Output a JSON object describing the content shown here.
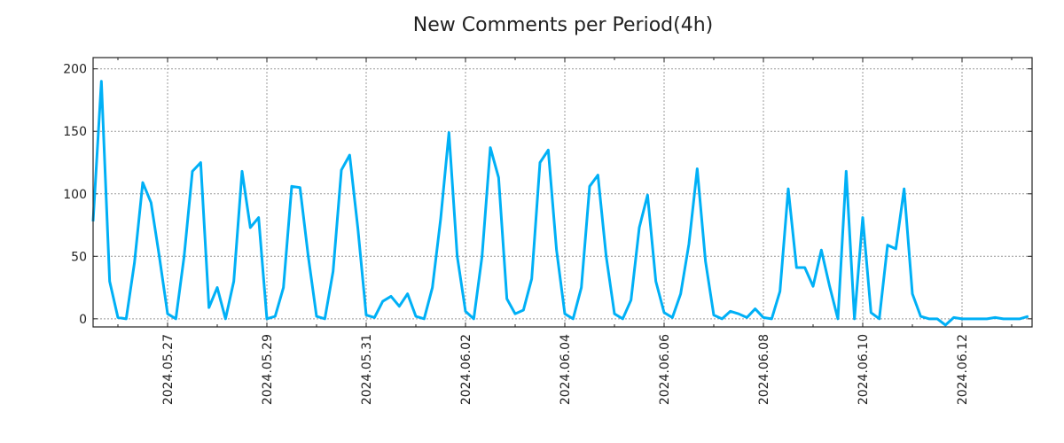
{
  "chart_data": {
    "type": "line",
    "title": "New Comments per Period(4h)",
    "xlabel": "",
    "ylabel": "",
    "x_start": "2024-05-25T12:00",
    "interval_hours": 4,
    "ylim": [
      -6.5,
      209
    ],
    "yticks": [
      0,
      50,
      100,
      150,
      200
    ],
    "xticks": [
      "2024.05.27",
      "2024.05.29",
      "2024.05.31",
      "2024.06.02",
      "2024.06.04",
      "2024.06.06",
      "2024.06.08",
      "2024.06.10",
      "2024.06.12"
    ],
    "grid": true,
    "line_color": "#00b0f6",
    "series": [
      {
        "name": "New Comments",
        "values": [
          78,
          190,
          30,
          1,
          0,
          45,
          109,
          93,
          50,
          4,
          0,
          50,
          118,
          125,
          9,
          25,
          0,
          30,
          118,
          73,
          81,
          0,
          2,
          25,
          106,
          105,
          50,
          2,
          0,
          38,
          119,
          131,
          72,
          3,
          1,
          14,
          18,
          10,
          20,
          2,
          0,
          25,
          80,
          149,
          50,
          6,
          0,
          50,
          137,
          113,
          16,
          4,
          7,
          32,
          125,
          135,
          55,
          4,
          0,
          25,
          106,
          115,
          50,
          4,
          0,
          15,
          73,
          99,
          30,
          5,
          1,
          20,
          60,
          120,
          46,
          3,
          0,
          6,
          4,
          1,
          8,
          1,
          0,
          22,
          104,
          41,
          41,
          26,
          55,
          26,
          0,
          118,
          0,
          81,
          5,
          0,
          59,
          56,
          104,
          20,
          2,
          0,
          0,
          -5,
          1,
          0,
          0,
          0,
          0,
          1,
          0,
          0,
          0,
          2
        ]
      }
    ]
  }
}
